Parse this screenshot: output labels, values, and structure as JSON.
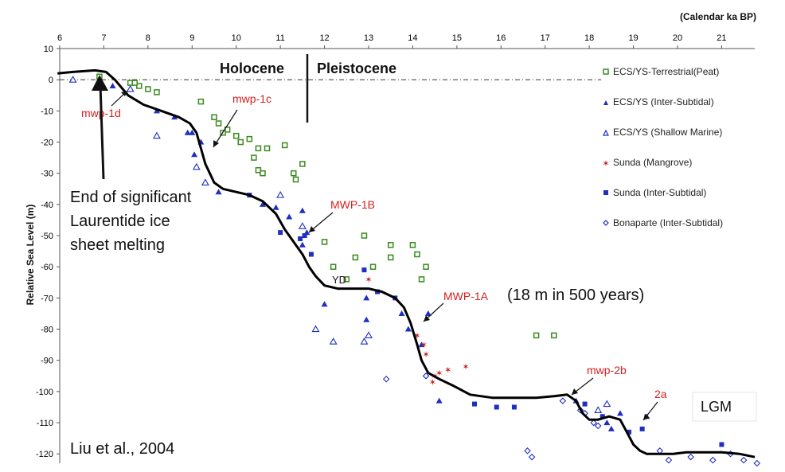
{
  "chart_data": {
    "type": "scatter",
    "title": "",
    "xlabel": "",
    "x_unit_label": "(Calendar ka BP)",
    "ylabel": "Relative Sea Level (m)",
    "xlim": [
      6,
      21.75
    ],
    "ylim": [
      -123,
      10
    ],
    "x_ticks": [
      6,
      7,
      8,
      9,
      10,
      11,
      12,
      13,
      14,
      15,
      16,
      17,
      18,
      19,
      20,
      21
    ],
    "y_ticks": [
      10,
      0,
      -10,
      -20,
      -30,
      -40,
      -50,
      -60,
      -70,
      -80,
      -90,
      -100,
      -110,
      -120
    ],
    "zero_line": 0,
    "epoch_divider_x": 11.55,
    "epochs": {
      "left": "Holocene",
      "right": "Pleistocene"
    },
    "curve": {
      "x": [
        5.95,
        6.3,
        6.8,
        7.05,
        7.25,
        7.55,
        7.9,
        8.3,
        8.7,
        8.95,
        9.1,
        9.2,
        9.3,
        9.4,
        9.5,
        9.7,
        10.0,
        10.3,
        10.6,
        10.9,
        11.1,
        11.3,
        11.5,
        11.65,
        11.8,
        12.0,
        12.3,
        12.6,
        13.0,
        13.3,
        13.6,
        13.8,
        13.95,
        14.1,
        14.2,
        14.35,
        14.6,
        14.9,
        15.3,
        15.8,
        16.3,
        16.8,
        17.2,
        17.5,
        17.7,
        17.85,
        18.0,
        18.2,
        18.45,
        18.7,
        18.85,
        19.0,
        19.15,
        19.3,
        19.5,
        19.7,
        19.9,
        20.2,
        20.6,
        21.0,
        21.4,
        21.75
      ],
      "y": [
        2,
        2.5,
        3,
        2.5,
        0,
        -5,
        -8,
        -10,
        -12,
        -14,
        -17,
        -22,
        -27,
        -30,
        -33,
        -35,
        -36,
        -37,
        -39,
        -43,
        -48,
        -52,
        -56,
        -60,
        -63,
        -66,
        -67,
        -67,
        -67,
        -68,
        -70,
        -73,
        -78,
        -85,
        -90,
        -94,
        -96,
        -98,
        -101,
        -102,
        -102,
        -102,
        -101.5,
        -101,
        -103,
        -107,
        -109,
        -109,
        -108,
        -109,
        -113,
        -117,
        -119,
        -120,
        -120,
        -120,
        -120,
        -119.5,
        -119.5,
        -119.5,
        -120,
        -121
      ]
    },
    "series": [
      {
        "name": "ECS/YS-Terrestrial(Peat)",
        "marker": "square-open",
        "color": "#3a8a1f",
        "points": [
          [
            6.9,
            1
          ],
          [
            7.6,
            -1
          ],
          [
            7.8,
            -2
          ],
          [
            8.0,
            -3
          ],
          [
            8.2,
            -4
          ],
          [
            7.7,
            -1
          ],
          [
            9.2,
            -7
          ],
          [
            9.5,
            -12
          ],
          [
            9.6,
            -14
          ],
          [
            9.8,
            -16
          ],
          [
            10.0,
            -18
          ],
          [
            10.1,
            -20
          ],
          [
            9.7,
            -17
          ],
          [
            10.3,
            -19
          ],
          [
            10.5,
            -22
          ],
          [
            10.7,
            -22
          ],
          [
            10.4,
            -25
          ],
          [
            10.5,
            -29
          ],
          [
            10.6,
            -30
          ],
          [
            11.1,
            -21
          ],
          [
            11.5,
            -27
          ],
          [
            11.3,
            -30
          ],
          [
            11.35,
            -32
          ],
          [
            12.0,
            -52
          ],
          [
            12.2,
            -60
          ],
          [
            12.5,
            -64
          ],
          [
            12.7,
            -57
          ],
          [
            12.9,
            -50
          ],
          [
            13.1,
            -60
          ],
          [
            13.5,
            -53
          ],
          [
            13.5,
            -57
          ],
          [
            14.0,
            -53
          ],
          [
            14.1,
            -56
          ],
          [
            14.3,
            -60
          ],
          [
            14.2,
            -64
          ],
          [
            16.8,
            -82
          ],
          [
            17.2,
            -82
          ]
        ]
      },
      {
        "name": "ECS/YS (Inter-Subtidal)",
        "marker": "triangle-filled",
        "color": "#1f2fc0",
        "points": [
          [
            7.2,
            -2
          ],
          [
            8.2,
            -10
          ],
          [
            8.6,
            -12
          ],
          [
            8.9,
            -17
          ],
          [
            9.0,
            -17
          ],
          [
            9.05,
            -24
          ],
          [
            9.2,
            -20
          ],
          [
            9.6,
            -36
          ],
          [
            10.6,
            -40
          ],
          [
            10.9,
            -41
          ],
          [
            11.2,
            -44
          ],
          [
            11.5,
            -42
          ],
          [
            11.6,
            -49
          ],
          [
            11.5,
            -53
          ],
          [
            12.0,
            -72
          ],
          [
            12.95,
            -77
          ],
          [
            12.95,
            -70
          ],
          [
            13.75,
            -75
          ],
          [
            13.9,
            -80
          ],
          [
            14.2,
            -85
          ],
          [
            14.35,
            -75
          ],
          [
            14.6,
            -103
          ],
          [
            17.7,
            -103
          ],
          [
            18.4,
            -110
          ],
          [
            18.5,
            -112
          ],
          [
            18.7,
            -107
          ],
          [
            19.3,
            -108
          ]
        ]
      },
      {
        "name": "ECS/YS (Shallow Marine)",
        "marker": "triangle-open",
        "color": "#1f2fc0",
        "points": [
          [
            6.3,
            0
          ],
          [
            7.6,
            -3
          ],
          [
            8.2,
            -18
          ],
          [
            9.1,
            -28
          ],
          [
            9.3,
            -33
          ],
          [
            11.0,
            -37
          ],
          [
            11.5,
            -47
          ],
          [
            11.8,
            -80
          ],
          [
            12.2,
            -84
          ],
          [
            12.9,
            -84
          ],
          [
            13.0,
            -82
          ],
          [
            18.2,
            -106
          ],
          [
            18.4,
            -104
          ]
        ]
      },
      {
        "name": "Sunda (Mangrove)",
        "marker": "asterisk",
        "color": "#c02020",
        "points": [
          [
            13.0,
            -64
          ],
          [
            14.1,
            -82
          ],
          [
            14.25,
            -85
          ],
          [
            14.3,
            -88
          ],
          [
            14.5,
            -95
          ],
          [
            14.6,
            -94
          ],
          [
            14.8,
            -93
          ],
          [
            15.2,
            -92
          ],
          [
            14.45,
            -97
          ]
        ]
      },
      {
        "name": "Sunda (Inter-Subtidal)",
        "marker": "square-filled",
        "color": "#1f2fc0",
        "points": [
          [
            10.3,
            -37
          ],
          [
            11.0,
            -49
          ],
          [
            11.45,
            -51
          ],
          [
            11.55,
            -50
          ],
          [
            11.7,
            -56
          ],
          [
            12.9,
            -61
          ],
          [
            13.2,
            -68
          ],
          [
            13.6,
            -70
          ],
          [
            15.4,
            -104
          ],
          [
            15.9,
            -105
          ],
          [
            16.3,
            -105
          ],
          [
            17.9,
            -104
          ],
          [
            18.3,
            -108
          ],
          [
            18.9,
            -113
          ],
          [
            19.2,
            -112
          ],
          [
            21.0,
            -117
          ]
        ]
      },
      {
        "name": "Bonaparte (Inter-Subtidal)",
        "marker": "diamond-open",
        "color": "#1f2fc0",
        "points": [
          [
            13.4,
            -96
          ],
          [
            14.3,
            -95
          ],
          [
            17.4,
            -103
          ],
          [
            17.8,
            -106
          ],
          [
            17.9,
            -107
          ],
          [
            18.1,
            -110
          ],
          [
            18.2,
            -111
          ],
          [
            19.6,
            -119
          ],
          [
            19.8,
            -122
          ],
          [
            20.3,
            -121
          ],
          [
            20.8,
            -122
          ],
          [
            21.2,
            -120
          ],
          [
            21.5,
            -122
          ],
          [
            21.8,
            -123
          ],
          [
            16.6,
            -119
          ],
          [
            16.7,
            -121
          ]
        ]
      }
    ],
    "annotations": {
      "mwp_1d": "mwp-1d",
      "mwp_1c": "mwp-1c",
      "mwp_1b": "MWP-1B",
      "mwp_1a": "MWP-1A",
      "mwp_2b": "mwp-2b",
      "mwp_2a": "2a",
      "yd": "YD",
      "lgm": "LGM",
      "rate_note": "(18 m in 500 years)",
      "ice_note": [
        "End of significant",
        "Laurentide ice",
        "sheet melting"
      ],
      "citation": "Liu et al., 2004"
    },
    "legend_position": "right"
  }
}
